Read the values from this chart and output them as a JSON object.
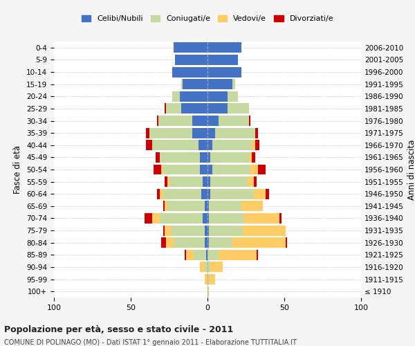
{
  "age_groups": [
    "100+",
    "95-99",
    "90-94",
    "85-89",
    "80-84",
    "75-79",
    "70-74",
    "65-69",
    "60-64",
    "55-59",
    "50-54",
    "45-49",
    "40-44",
    "35-39",
    "30-34",
    "25-29",
    "20-24",
    "15-19",
    "10-14",
    "5-9",
    "0-4"
  ],
  "birth_years": [
    "≤ 1910",
    "1911-1915",
    "1916-1920",
    "1921-1925",
    "1926-1930",
    "1931-1935",
    "1936-1940",
    "1941-1945",
    "1946-1950",
    "1951-1955",
    "1956-1960",
    "1961-1965",
    "1966-1970",
    "1971-1975",
    "1976-1980",
    "1981-1985",
    "1986-1990",
    "1991-1995",
    "1996-2000",
    "2001-2005",
    "2006-2010"
  ],
  "male": {
    "celibe": [
      0,
      0,
      0,
      1,
      2,
      2,
      3,
      2,
      4,
      3,
      5,
      5,
      6,
      10,
      10,
      17,
      18,
      16,
      23,
      21,
      22
    ],
    "coniugato": [
      0,
      0,
      2,
      8,
      20,
      22,
      28,
      24,
      25,
      22,
      24,
      26,
      30,
      28,
      22,
      10,
      5,
      1,
      0,
      0,
      0
    ],
    "vedovo": [
      0,
      2,
      3,
      5,
      5,
      4,
      5,
      2,
      2,
      1,
      1,
      0,
      0,
      0,
      0,
      0,
      0,
      0,
      0,
      0,
      0
    ],
    "divorziato": [
      0,
      0,
      0,
      1,
      3,
      1,
      5,
      1,
      2,
      2,
      5,
      3,
      4,
      2,
      1,
      1,
      0,
      0,
      0,
      0,
      0
    ]
  },
  "female": {
    "nubile": [
      0,
      0,
      0,
      0,
      1,
      1,
      1,
      1,
      2,
      2,
      3,
      2,
      3,
      5,
      7,
      13,
      13,
      16,
      22,
      20,
      22
    ],
    "coniugata": [
      0,
      1,
      2,
      7,
      15,
      22,
      23,
      21,
      28,
      24,
      25,
      25,
      26,
      26,
      20,
      14,
      7,
      2,
      0,
      0,
      0
    ],
    "vedova": [
      1,
      4,
      8,
      25,
      35,
      28,
      23,
      14,
      8,
      4,
      5,
      2,
      2,
      0,
      0,
      0,
      0,
      0,
      0,
      0,
      0
    ],
    "divorziata": [
      0,
      0,
      0,
      1,
      1,
      0,
      1,
      0,
      2,
      2,
      5,
      2,
      3,
      2,
      1,
      0,
      0,
      0,
      0,
      0,
      0
    ]
  },
  "colors": {
    "celibe": "#4472C4",
    "coniugato": "#C5D9A0",
    "vedovo": "#FFCC66",
    "divorziato": "#CC0000"
  },
  "xlim": 100,
  "title": "Popolazione per età, sesso e stato civile - 2011",
  "subtitle": "COMUNE DI POLINAGO (MO) - Dati ISTAT 1° gennaio 2011 - Elaborazione TUTTITALIA.IT",
  "ylabel": "Fasce di età",
  "ylabel_right": "Anni di nascita",
  "legend_labels": [
    "Celibi/Nubili",
    "Coniugati/e",
    "Vedovi/e",
    "Divorziati/e"
  ],
  "bg_color": "#f5f5f5",
  "plot_bg_color": "#ffffff"
}
